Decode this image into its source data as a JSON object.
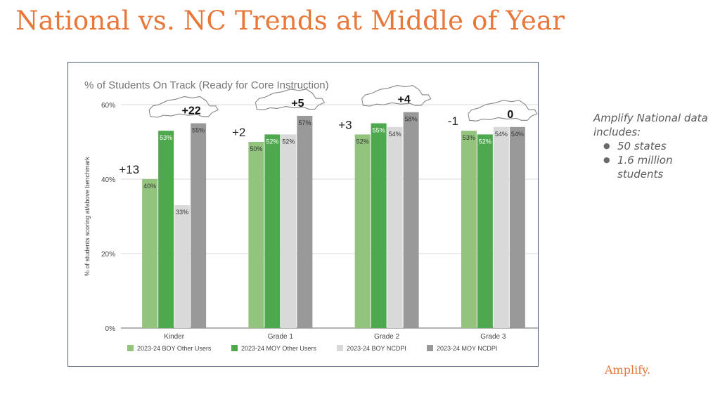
{
  "page": {
    "title": "National vs. NC Trends at Middle of Year",
    "brand": "Amplify."
  },
  "side_note": {
    "heading": "Amplify National data includes:",
    "items": [
      "50 states",
      "1.6 million students"
    ]
  },
  "colors": {
    "title": "#e8773a",
    "boy_other": "#93c47d",
    "moy_other": "#4ea84e",
    "boy_ncdpi": "#d9d9d9",
    "moy_ncdpi": "#999999",
    "gridline": "#d9d9d9",
    "axis": "#666666"
  },
  "chart_data": {
    "type": "bar",
    "title": "% of Students On Track (Ready for Core Instruction)",
    "xlabel": "",
    "ylabel": "% of students scoring at/above benchmark",
    "ylim": [
      0,
      60
    ],
    "yticks": [
      "0%",
      "20%",
      "40%",
      "60%"
    ],
    "ytick_values": [
      0,
      20,
      40,
      60
    ],
    "grid": true,
    "legend_position": "bottom",
    "categories": [
      "Kinder",
      "Grade 1",
      "Grade 2",
      "Grade 3"
    ],
    "series": [
      {
        "name": "2023-24 BOY Other Users",
        "values": [
          40,
          50,
          52,
          53
        ],
        "labels": [
          "40%",
          "50%",
          "52%",
          "53%"
        ],
        "color": "#93c47d"
      },
      {
        "name": "2023-24 MOY Other Users",
        "values": [
          53,
          52,
          55,
          52
        ],
        "labels": [
          "53%",
          "52%",
          "55%",
          "52%"
        ],
        "color": "#4ea84e"
      },
      {
        "name": "2023-24 BOY NCDPI",
        "values": [
          33,
          52,
          54,
          54
        ],
        "labels": [
          "33%",
          "52%",
          "54%",
          "54%"
        ],
        "color": "#d9d9d9"
      },
      {
        "name": "2023-24 MOY NCDPI",
        "values": [
          55,
          57,
          58,
          54
        ],
        "labels": [
          "55%",
          "57%",
          "58%",
          "54%"
        ],
        "color": "#999999"
      }
    ],
    "national_change": [
      "+13",
      "+2",
      "+3",
      "-1"
    ],
    "nc_change": [
      "+22",
      "+5",
      "+4",
      "0"
    ]
  }
}
